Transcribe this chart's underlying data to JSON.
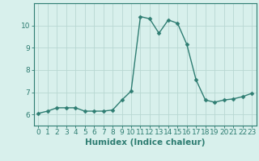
{
  "xlabel": "Humidex (Indice chaleur)",
  "x": [
    0,
    1,
    2,
    3,
    4,
    5,
    6,
    7,
    8,
    9,
    10,
    11,
    12,
    13,
    14,
    15,
    16,
    17,
    18,
    19,
    20,
    21,
    22,
    23
  ],
  "y": [
    6.05,
    6.15,
    6.3,
    6.3,
    6.3,
    6.15,
    6.15,
    6.15,
    6.2,
    6.65,
    7.05,
    10.4,
    10.3,
    9.65,
    10.25,
    10.1,
    9.15,
    7.55,
    6.65,
    6.55,
    6.65,
    6.7,
    6.8,
    6.95
  ],
  "line_color": "#2e7d72",
  "marker": "D",
  "marker_size": 2.5,
  "bg_color": "#d8f0ec",
  "grid_color": "#b8d8d2",
  "axis_color": "#2e7d72",
  "tick_label_color": "#2e7d72",
  "xlabel_color": "#2e7d72",
  "ylim": [
    5.5,
    11.0
  ],
  "yticks": [
    6,
    7,
    8,
    9,
    10
  ],
  "xticks": [
    0,
    1,
    2,
    3,
    4,
    5,
    6,
    7,
    8,
    9,
    10,
    11,
    12,
    13,
    14,
    15,
    16,
    17,
    18,
    19,
    20,
    21,
    22,
    23
  ],
  "xlabel_fontsize": 7.5,
  "tick_fontsize": 6.5,
  "linewidth": 1.0,
  "marker_color": "#2e7d72"
}
